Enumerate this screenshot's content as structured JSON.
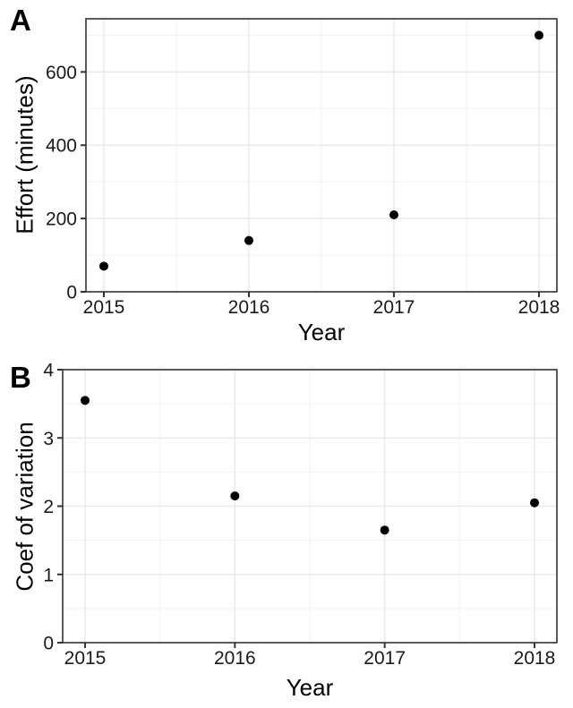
{
  "colors": {
    "background": "#ffffff",
    "panel_border": "#333333",
    "grid_major": "#e6e6e6",
    "grid_minor": "#f2f2f2",
    "tick_mark": "#333333",
    "point": "#000000"
  },
  "chart_data": [
    {
      "type": "scatter",
      "panel_label": "A",
      "title": "",
      "xlabel": "Year",
      "ylabel": "Effort (minutes)",
      "x": [
        2015,
        2016,
        2017,
        2018
      ],
      "y": [
        70,
        140,
        210,
        700
      ],
      "xticks": [
        2015,
        2016,
        2017,
        2018
      ],
      "yticks": [
        0,
        200,
        400,
        600
      ],
      "ylim": [
        0,
        745
      ],
      "y_minor_step": 100,
      "x_minor_step": 0.5,
      "grid": "major+minor",
      "legend": "none"
    },
    {
      "type": "scatter",
      "panel_label": "B",
      "title": "",
      "xlabel": "Year",
      "ylabel": "Coef of variation",
      "x": [
        2015,
        2016,
        2017,
        2018
      ],
      "y": [
        3.55,
        2.15,
        1.65,
        2.05
      ],
      "xticks": [
        2015,
        2016,
        2017,
        2018
      ],
      "yticks": [
        0,
        1,
        2,
        3,
        4
      ],
      "ylim": [
        0,
        4
      ],
      "y_minor_step": 0.5,
      "x_minor_step": 0.5,
      "grid": "major+minor",
      "legend": "none"
    }
  ]
}
